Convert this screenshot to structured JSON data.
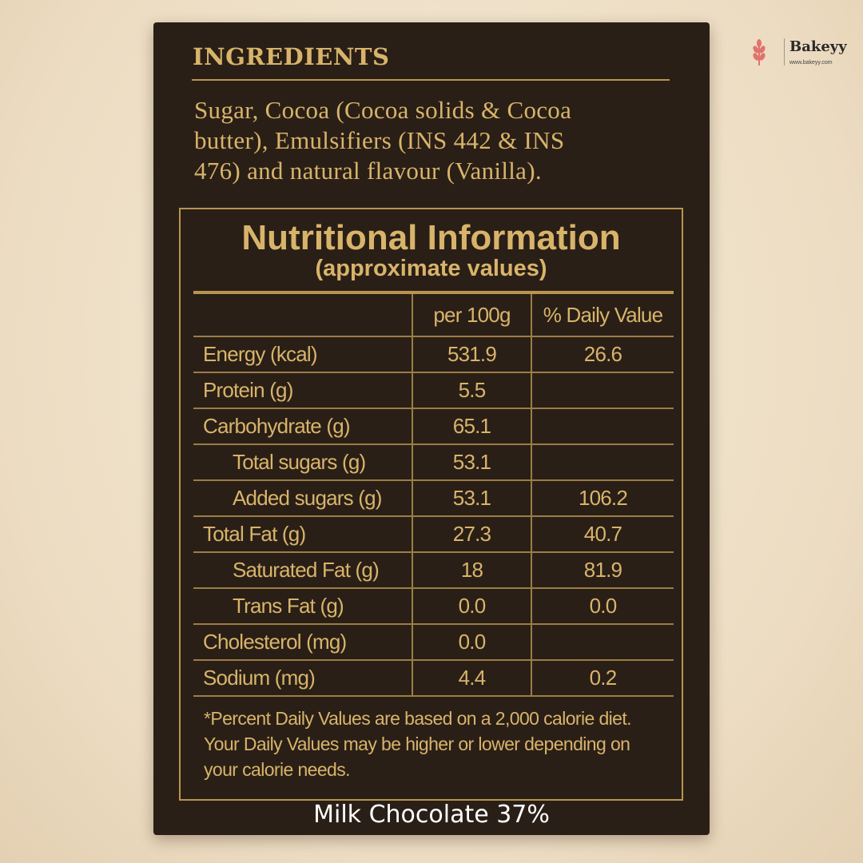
{
  "brand": {
    "name": "Bakeyy",
    "url": "www.bakeyy.com"
  },
  "ingredients": {
    "title": "INGREDIENTS",
    "lines": [
      "Sugar, Cocoa (Cocoa solids & Cocoa",
      "butter), Emulsifiers (INS 442 & INS",
      "476) and natural flavour (Vanilla)."
    ]
  },
  "nutrition": {
    "title": "Nutritional Information",
    "subtitle": "(approximate values)",
    "header": [
      "per 100g",
      "% Daily Value"
    ],
    "rows": [
      [
        "Energy (kcal)",
        "531.9",
        "26.6"
      ],
      [
        "Protein (g)",
        "5.5",
        null
      ],
      [
        "Carbohydrate (g)",
        "65.1",
        null
      ],
      [
        "Total sugars (g)",
        "53.1",
        null
      ],
      [
        "Added sugars (g)",
        "53.1",
        "106.2"
      ],
      [
        "Total Fat (g)",
        "27.3",
        "40.7"
      ],
      [
        "Saturated Fat (g)",
        "18",
        "81.9"
      ],
      [
        "Trans Fat (g)",
        "0.0",
        "0.0"
      ],
      [
        "Cholesterol (mg)",
        "0.0",
        null
      ],
      [
        "Sodium (mg)",
        "4.4",
        "0.2"
      ]
    ],
    "footnote": [
      "*Percent Daily Values are based on a 2,000 calorie diet.",
      "Your Daily Values may be higher or lower depending on",
      "your calorie needs."
    ]
  },
  "caption": "Milk Chocolate 37%"
}
